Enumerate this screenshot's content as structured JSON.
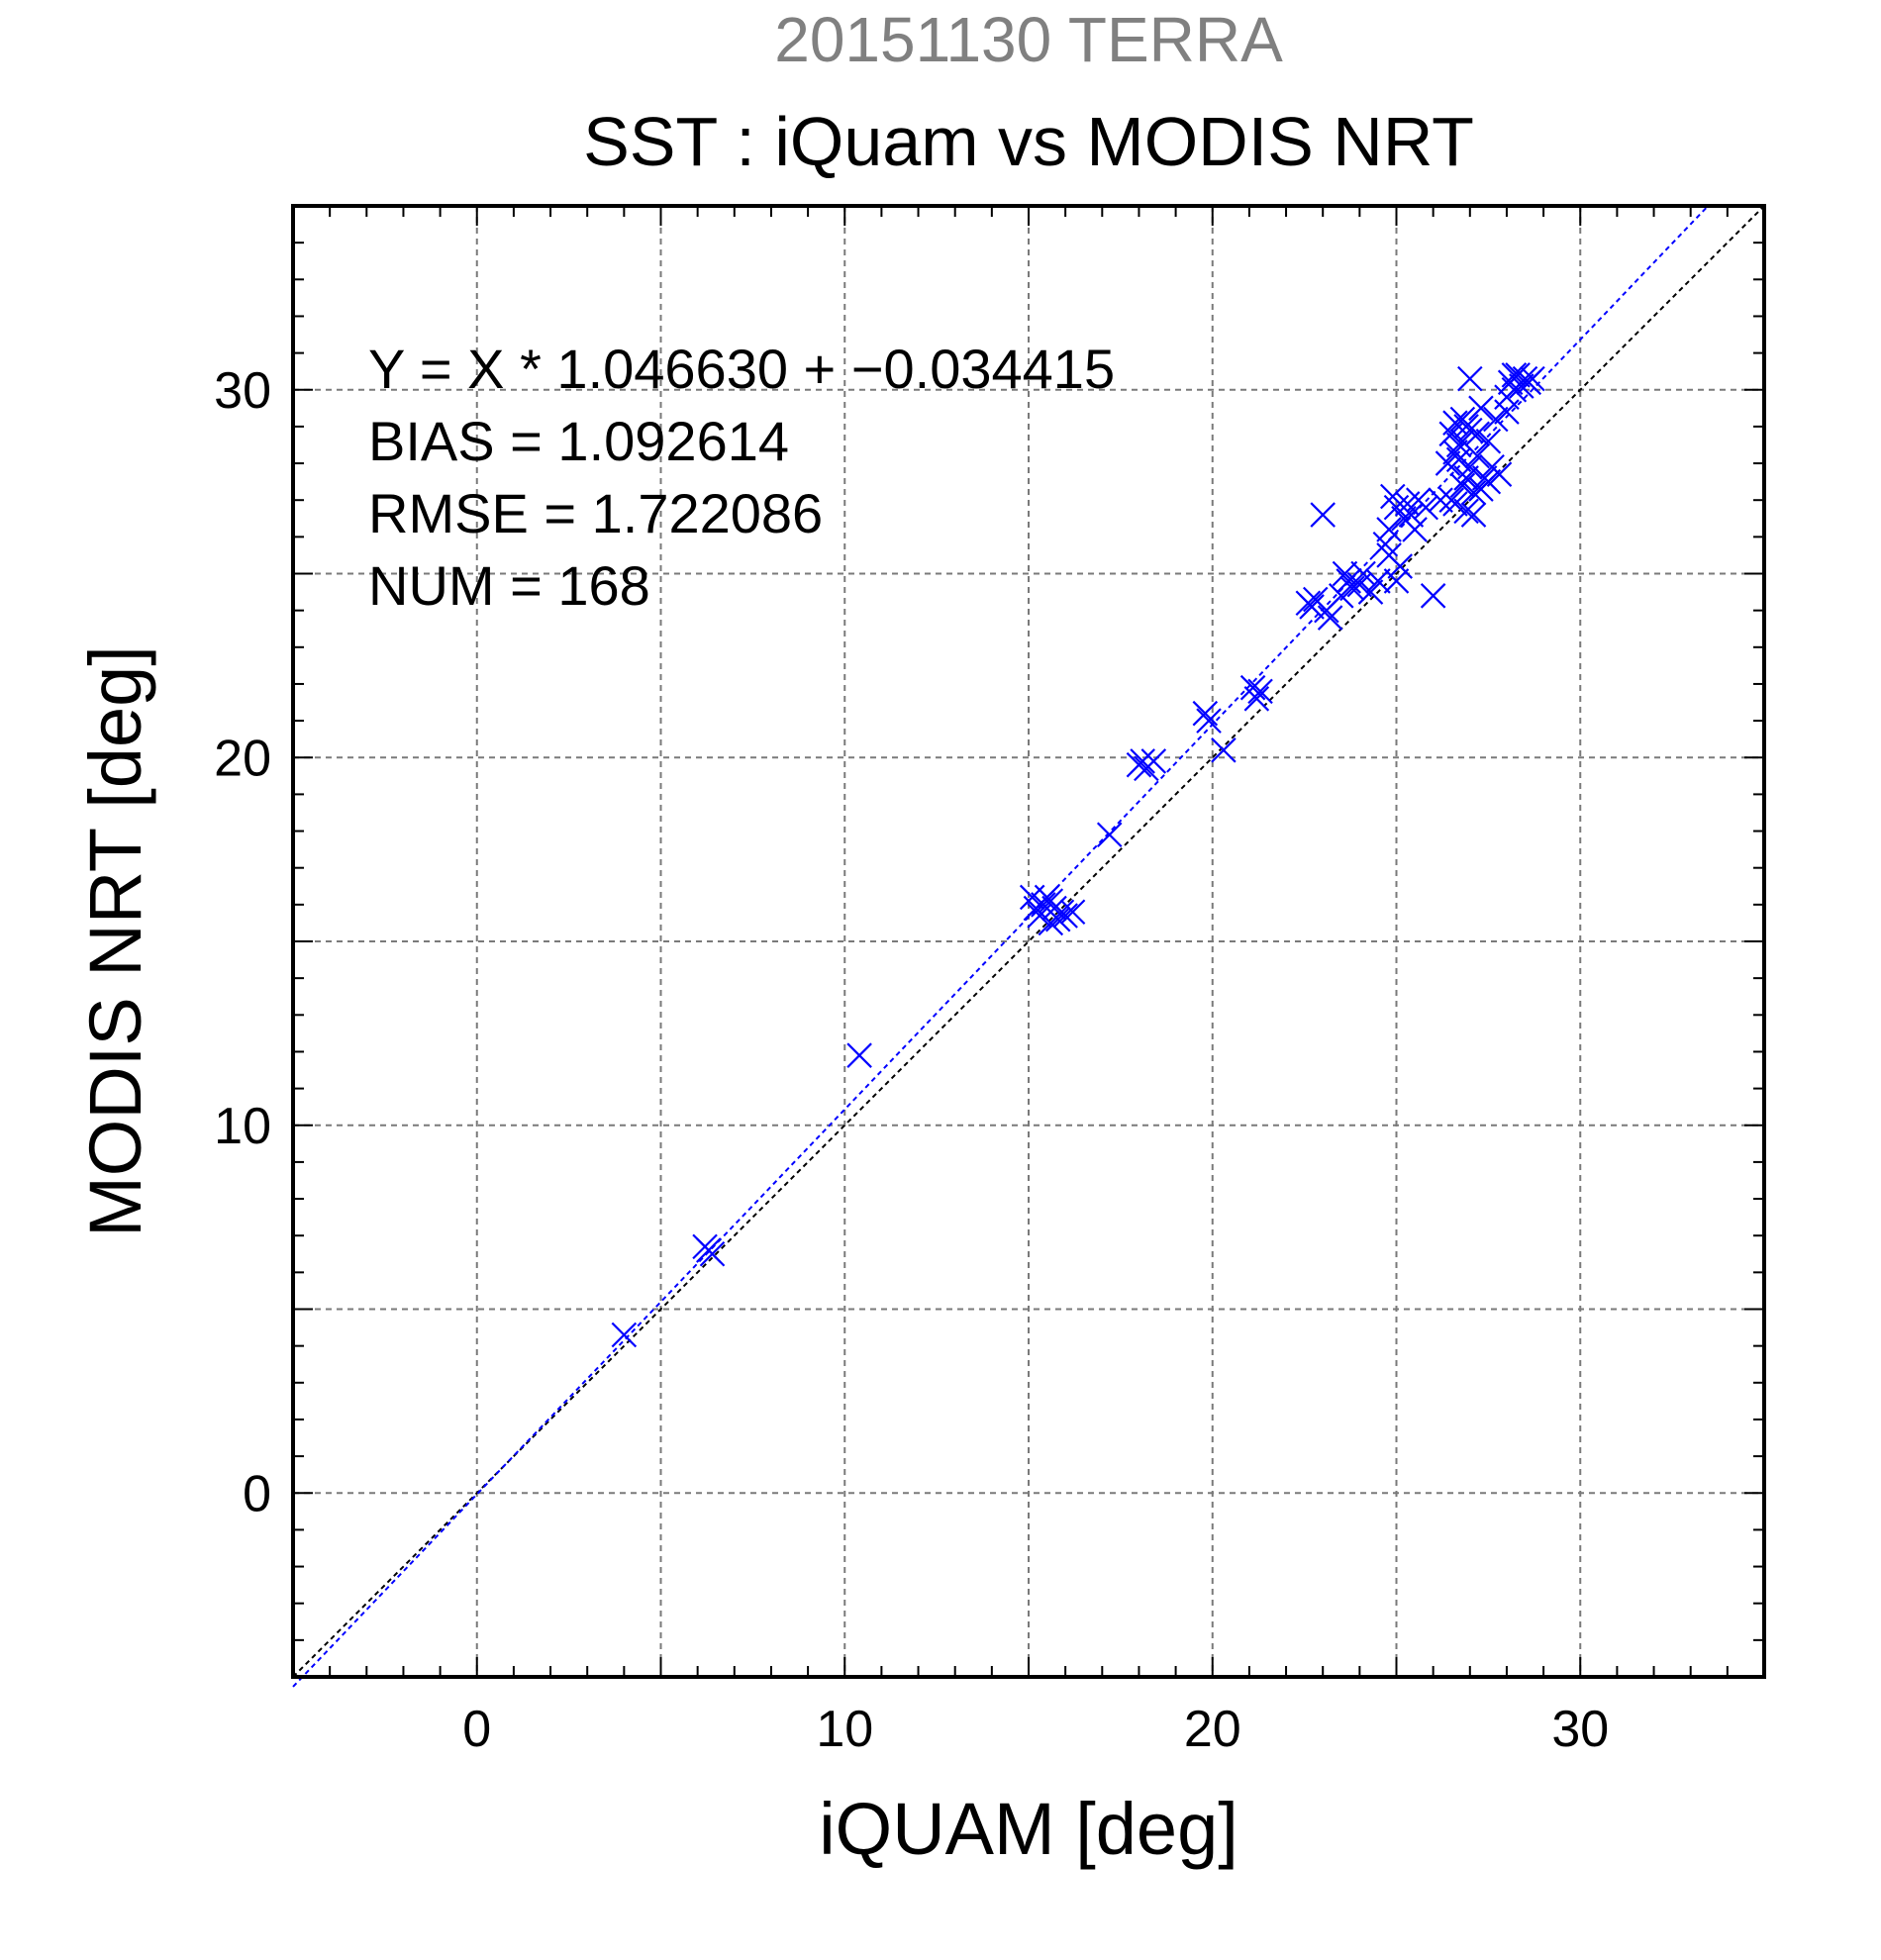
{
  "chart_data": {
    "type": "scatter",
    "header": "20151130 TERRA",
    "title": "SST : iQuam vs MODIS NRT",
    "xlabel": "iQUAM [deg]",
    "ylabel": "MODIS NRT [deg]",
    "xlim": [
      -5,
      35
    ],
    "ylim": [
      -5,
      35
    ],
    "xticks": [
      0,
      10,
      20,
      30
    ],
    "yticks": [
      0,
      10,
      20,
      30
    ],
    "grid": true,
    "stats": [
      "Y = X * 1.046630 + −0.034415",
      "BIAS = 1.092614",
      "RMSE = 1.722086",
      "NUM = 168"
    ],
    "regression": {
      "slope": 1.04663,
      "intercept": -0.034415,
      "color": "#0000ff"
    },
    "one_to_one": {
      "color": "#000000"
    },
    "header_color": "#808080",
    "marker_color": "#0000ff",
    "points": [
      [
        4.0,
        4.3
      ],
      [
        6.2,
        6.7
      ],
      [
        6.3,
        6.6
      ],
      [
        6.4,
        6.5
      ],
      [
        10.4,
        11.9
      ],
      [
        15.1,
        16.2
      ],
      [
        15.2,
        15.9
      ],
      [
        15.3,
        15.7
      ],
      [
        15.4,
        16.0
      ],
      [
        15.5,
        16.2
      ],
      [
        15.6,
        15.5
      ],
      [
        15.7,
        15.9
      ],
      [
        15.8,
        15.6
      ],
      [
        15.9,
        15.8
      ],
      [
        16.0,
        15.7
      ],
      [
        16.2,
        15.8
      ],
      [
        15.6,
        16.1
      ],
      [
        17.2,
        17.9
      ],
      [
        18.0,
        19.8
      ],
      [
        18.1,
        19.9
      ],
      [
        18.2,
        19.7
      ],
      [
        18.4,
        19.9
      ],
      [
        19.8,
        21.2
      ],
      [
        19.9,
        21.0
      ],
      [
        20.3,
        20.2
      ],
      [
        21.1,
        21.9
      ],
      [
        21.2,
        21.6
      ],
      [
        21.3,
        21.8
      ],
      [
        22.6,
        24.2
      ],
      [
        22.7,
        24.1
      ],
      [
        22.8,
        24.3
      ],
      [
        23.0,
        26.6
      ],
      [
        23.1,
        24.0
      ],
      [
        23.2,
        23.8
      ],
      [
        23.5,
        24.4
      ],
      [
        23.6,
        25.0
      ],
      [
        23.7,
        24.8
      ],
      [
        23.8,
        24.6
      ],
      [
        24.0,
        24.7
      ],
      [
        24.1,
        25.0
      ],
      [
        24.3,
        24.5
      ],
      [
        24.5,
        24.8
      ],
      [
        24.7,
        25.8
      ],
      [
        24.8,
        26.2
      ],
      [
        24.9,
        27.1
      ],
      [
        25.0,
        26.8
      ],
      [
        25.1,
        25.2
      ],
      [
        25.2,
        26.5
      ],
      [
        25.3,
        26.9
      ],
      [
        25.4,
        26.6
      ],
      [
        25.5,
        26.2
      ],
      [
        25.6,
        27.0
      ],
      [
        25.0,
        24.8
      ],
      [
        24.8,
        25.5
      ],
      [
        25.8,
        26.8
      ],
      [
        26.0,
        24.4
      ],
      [
        26.2,
        27.0
      ],
      [
        26.4,
        28.0
      ],
      [
        26.5,
        28.8
      ],
      [
        26.6,
        26.9
      ],
      [
        26.7,
        28.5
      ],
      [
        26.8,
        27.4
      ],
      [
        26.9,
        29.0
      ],
      [
        27.0,
        30.3
      ],
      [
        27.1,
        26.6
      ],
      [
        27.2,
        28.2
      ],
      [
        27.3,
        29.5
      ],
      [
        27.4,
        27.6
      ],
      [
        27.5,
        28.6
      ],
      [
        27.6,
        27.9
      ],
      [
        27.7,
        29.2
      ],
      [
        27.8,
        27.7
      ],
      [
        26.6,
        28.3
      ],
      [
        26.7,
        28.1
      ],
      [
        26.8,
        28.6
      ],
      [
        26.9,
        27.6
      ],
      [
        27.0,
        28.9
      ],
      [
        27.1,
        27.2
      ],
      [
        26.5,
        27.0
      ],
      [
        26.6,
        29.1
      ],
      [
        26.9,
        26.7
      ],
      [
        27.0,
        27.9
      ],
      [
        27.2,
        28.8
      ],
      [
        27.3,
        27.3
      ],
      [
        27.5,
        27.5
      ],
      [
        26.8,
        29.2
      ],
      [
        28.0,
        29.4
      ],
      [
        28.1,
        30.2
      ],
      [
        28.2,
        30.0
      ],
      [
        28.3,
        30.4
      ],
      [
        28.4,
        30.1
      ],
      [
        28.5,
        30.3
      ],
      [
        28.6,
        30.2
      ],
      [
        28.7,
        30.3
      ],
      [
        28.0,
        29.8
      ],
      [
        28.2,
        30.4
      ]
    ]
  }
}
